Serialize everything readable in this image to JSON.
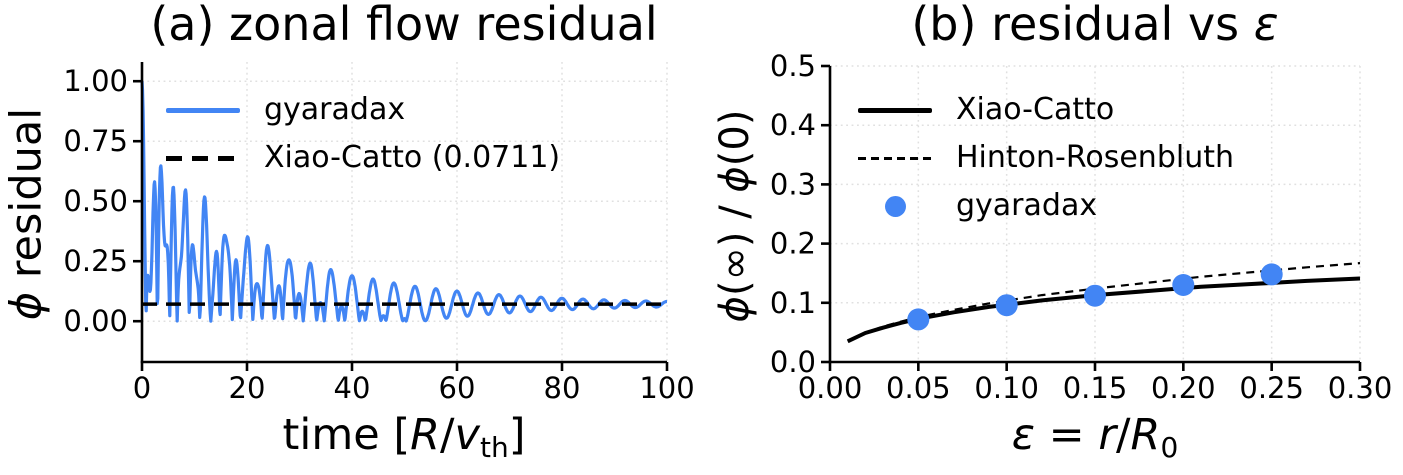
{
  "colors": {
    "accent_blue": "#4285f4",
    "line_black": "#000000",
    "grid": "#e0e0e0",
    "background": "#ffffff"
  },
  "panel_a": {
    "title": "(a) zonal flow residual",
    "ylabel": {
      "phi": "ϕ",
      "rest": " residual"
    },
    "xlabel": {
      "pre": "time [",
      "R": "R",
      "slash": "/",
      "v": "v",
      "sub": "th",
      "close": "]"
    },
    "legend": [
      {
        "label": "gyaradax"
      },
      {
        "label": "Xiao-Catto (0.0711)"
      }
    ]
  },
  "panel_b": {
    "title": {
      "pre": "(b) residual vs ",
      "eps": "ε"
    },
    "ylabel": {
      "phi1": "ϕ",
      "mid": "(∞) / ",
      "phi2": "ϕ",
      "end": "(0)"
    },
    "xlabel": {
      "eps": "ε",
      "eq": " = ",
      "r": "r",
      "slash": "/",
      "R": "R",
      "sub": "0"
    },
    "legend": [
      {
        "label": "Xiao-Catto"
      },
      {
        "label": "Hinton-Rosenbluth"
      },
      {
        "label": "gyaradax"
      }
    ]
  },
  "chart_data": [
    {
      "type": "line",
      "panel": "a",
      "title": "(a) zonal flow residual",
      "xlabel": "time [R/v_th]",
      "ylabel": "phi residual",
      "xlim": [
        0,
        100
      ],
      "ylim": [
        -0.17,
        1.08
      ],
      "grid": true,
      "legend": [
        "gyaradax",
        "Xiao-Catto (0.0711)"
      ],
      "legend_position": "upper left",
      "xticks": [
        {
          "v": 0,
          "label": "0"
        },
        {
          "v": 20,
          "label": "20"
        },
        {
          "v": 40,
          "label": "40"
        },
        {
          "v": 60,
          "label": "60"
        },
        {
          "v": 80,
          "label": "80"
        },
        {
          "v": 100,
          "label": "100"
        }
      ],
      "yticks": [
        {
          "v": 0.0,
          "label": "0.00"
        },
        {
          "v": 0.25,
          "label": "0.25"
        },
        {
          "v": 0.5,
          "label": "0.50"
        },
        {
          "v": 0.75,
          "label": "0.75"
        },
        {
          "v": 1.0,
          "label": "1.00"
        }
      ],
      "asymptote": {
        "name": "Xiao-Catto",
        "value": 0.0711,
        "style": "dashed-black"
      },
      "series": [
        {
          "name": "gyaradax",
          "style": "solid",
          "color": "#4285f4",
          "description": "damped geodesic-acoustic oscillation decaying to the Xiao-Catto residual 0.0711; starts at 1.0 at t=0, envelope peaks ~0.65 at t=5, ~0.35 at t=20, ~0.15 at t=50, ~0.08 by t=100, minima near 0 until t~50",
          "model": {
            "formula": "y(t) = abs(R + A1*exp(-g1*t)*cos(w1*t) + A2*exp(-g2*t)*cos(w2*t))",
            "R": 0.0711,
            "A1": 0.6,
            "g1": 0.04,
            "w1": 1.5708,
            "A2": 0.3289,
            "g2": 0.12,
            "w2": 3.7,
            "t0": 0,
            "t1": 100,
            "dt": 0.1
          }
        }
      ]
    },
    {
      "type": "line+scatter",
      "panel": "b",
      "title": "(b) residual vs ε",
      "xlabel": "ε = r/R_0",
      "ylabel": "ϕ(∞) / ϕ(0)",
      "xlim": [
        0,
        0.3
      ],
      "ylim": [
        0,
        0.5
      ],
      "grid": true,
      "legend": [
        "Xiao-Catto",
        "Hinton-Rosenbluth",
        "gyaradax"
      ],
      "legend_position": "upper left",
      "xticks": [
        {
          "v": 0.0,
          "label": "0.00"
        },
        {
          "v": 0.05,
          "label": "0.05"
        },
        {
          "v": 0.1,
          "label": "0.10"
        },
        {
          "v": 0.15,
          "label": "0.15"
        },
        {
          "v": 0.2,
          "label": "0.20"
        },
        {
          "v": 0.25,
          "label": "0.25"
        },
        {
          "v": 0.3,
          "label": "0.30"
        }
      ],
      "yticks": [
        {
          "v": 0.0,
          "label": "0.0"
        },
        {
          "v": 0.1,
          "label": "0.1"
        },
        {
          "v": 0.2,
          "label": "0.2"
        },
        {
          "v": 0.3,
          "label": "0.3"
        },
        {
          "v": 0.4,
          "label": "0.4"
        },
        {
          "v": 0.5,
          "label": "0.5"
        }
      ],
      "series": [
        {
          "name": "Xiao-Catto",
          "style": "solid-thick",
          "color": "#000000",
          "x": [
            0.01,
            0.02,
            0.03,
            0.04,
            0.05,
            0.07,
            0.09,
            0.12,
            0.15,
            0.18,
            0.21,
            0.24,
            0.27,
            0.3
          ],
          "y": [
            0.035,
            0.049,
            0.058,
            0.066,
            0.073,
            0.084,
            0.093,
            0.104,
            0.113,
            0.12,
            0.127,
            0.132,
            0.137,
            0.141
          ]
        },
        {
          "name": "Hinton-Rosenbluth",
          "style": "dashed-thin",
          "color": "#000000",
          "x": [
            0.01,
            0.02,
            0.03,
            0.04,
            0.05,
            0.07,
            0.09,
            0.12,
            0.15,
            0.18,
            0.21,
            0.24,
            0.27,
            0.3
          ],
          "y": [
            0.035,
            0.049,
            0.06,
            0.068,
            0.076,
            0.088,
            0.099,
            0.113,
            0.124,
            0.134,
            0.144,
            0.152,
            0.16,
            0.167
          ]
        },
        {
          "name": "gyaradax",
          "style": "scatter",
          "color": "#4285f4",
          "x": [
            0.05,
            0.1,
            0.15,
            0.2,
            0.25
          ],
          "y": [
            0.072,
            0.096,
            0.112,
            0.13,
            0.148
          ]
        }
      ]
    }
  ]
}
